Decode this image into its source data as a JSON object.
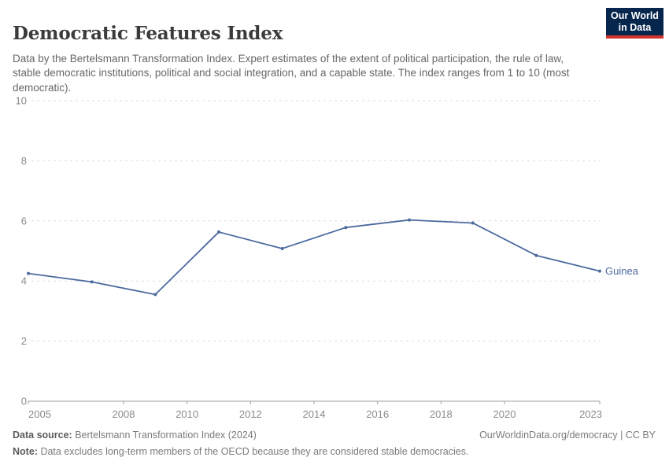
{
  "header": {
    "title": "Democratic Features Index",
    "subtitle": "Data by the Bertelsmann Transformation Index. Expert estimates of the extent of political participation, the rule of law, stable democratic institutions, political and social integration, and a capable state. The index ranges from 1 to 10 (most democratic).",
    "logo": {
      "line1": "Our World",
      "line2": "in Data"
    }
  },
  "chart_data": {
    "type": "line",
    "title": "Democratic Features Index",
    "xlabel": "",
    "ylabel": "",
    "xlim": [
      2005,
      2023
    ],
    "ylim": [
      0,
      10
    ],
    "x_ticks": [
      2005,
      2008,
      2010,
      2012,
      2014,
      2016,
      2018,
      2020,
      2023
    ],
    "y_ticks": [
      0,
      2,
      4,
      6,
      8,
      10
    ],
    "grid": "horizontal-dashed",
    "legend_position": "end-of-line-label",
    "series": [
      {
        "name": "Guinea",
        "color": "#4C6A9F",
        "x": [
          2005,
          2007,
          2009,
          2011,
          2013,
          2015,
          2017,
          2019,
          2021,
          2023
        ],
        "values": [
          4.25,
          3.97,
          3.55,
          5.63,
          5.08,
          5.78,
          6.03,
          5.93,
          4.85,
          4.33
        ]
      }
    ]
  },
  "footer": {
    "source_label": "Data source:",
    "source_text": "Bertelsmann Transformation Index (2024)",
    "rights": "OurWorldinData.org/democracy | CC BY",
    "note_label": "Note:",
    "note_text": "Data excludes long-term members of the OECD because they are considered stable democracies."
  },
  "colors": {
    "series_blue": "#4C6A9F",
    "title_text": "#3b3b3b",
    "subtitle_text": "#676767",
    "axis_label": "#8a8a8a",
    "gridline": "#dedede",
    "axis_line": "#a1a1a1",
    "footer_text": "#7b7b7b",
    "logo_navy": "#06264d",
    "logo_red": "#d0342c"
  }
}
